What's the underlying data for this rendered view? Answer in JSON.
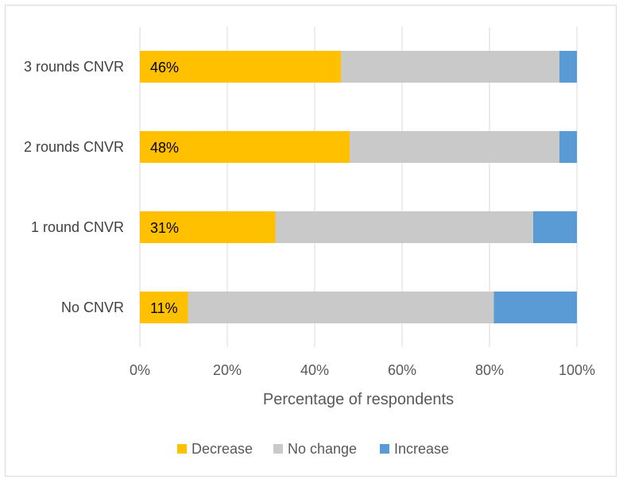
{
  "chart_data": {
    "type": "bar",
    "orientation": "horizontal",
    "stacked": "percent",
    "categories": [
      "3 rounds CNVR",
      "2 rounds CNVR",
      "1 round CNVR",
      "No CNVR"
    ],
    "series": [
      {
        "name": "Decrease",
        "color": "#FFC000",
        "values": [
          46,
          48,
          31,
          11
        ],
        "data_labels": [
          "46%",
          "48%",
          "31%",
          "11%"
        ]
      },
      {
        "name": "No change",
        "color": "#C9C9C9",
        "values": [
          50,
          48,
          59,
          70
        ]
      },
      {
        "name": "Increase",
        "color": "#5B9BD5",
        "values": [
          4,
          4,
          10,
          19
        ]
      }
    ],
    "xlim": [
      0,
      100
    ],
    "x_ticks": [
      0,
      20,
      40,
      60,
      80,
      100
    ],
    "x_tick_labels": [
      "0%",
      "20%",
      "40%",
      "60%",
      "80%",
      "100%"
    ],
    "xlabel": "Percentage of respondents",
    "ylabel": "",
    "title": "",
    "grid": "vertical",
    "legend_position": "bottom"
  }
}
